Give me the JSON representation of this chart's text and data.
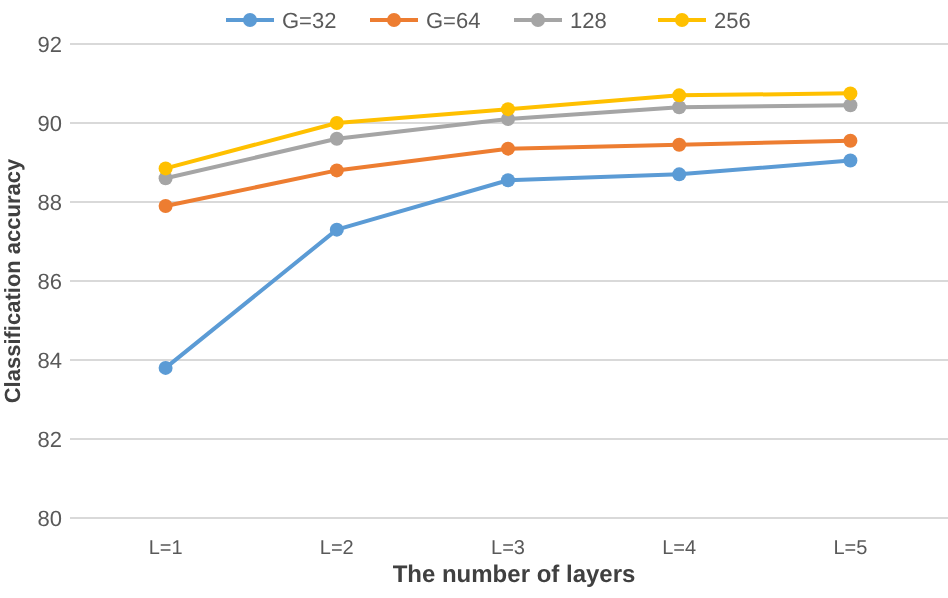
{
  "chart_data": {
    "type": "line",
    "xlabel": "The number of layers",
    "ylabel": "Classification accuracy",
    "categories": [
      "L=1",
      "L=2",
      "L=3",
      "L=4",
      "L=5"
    ],
    "series": [
      {
        "name": "G=32",
        "color": "#5b9bd5",
        "values": [
          83.8,
          87.3,
          88.55,
          88.7,
          89.05
        ]
      },
      {
        "name": "G=64",
        "color": "#ed7d31",
        "values": [
          87.9,
          88.8,
          89.35,
          89.45,
          89.55
        ]
      },
      {
        "name": "128",
        "color": "#a5a5a5",
        "values": [
          88.6,
          89.6,
          90.1,
          90.4,
          90.45
        ]
      },
      {
        "name": "256",
        "color": "#ffc000",
        "values": [
          88.85,
          90.0,
          90.35,
          90.7,
          90.75
        ]
      }
    ],
    "ylim": [
      80,
      92
    ],
    "yticks": [
      80,
      82,
      84,
      86,
      88,
      90,
      92
    ],
    "grid": "y",
    "legend": "top",
    "marker": "circle",
    "line_style": "solid"
  }
}
